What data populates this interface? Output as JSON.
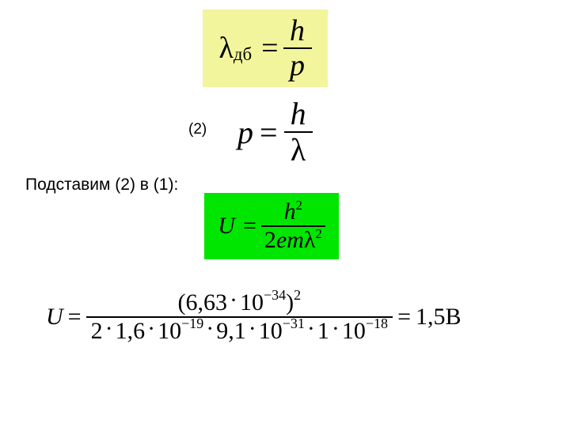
{
  "eq1": {
    "lambda": "λ",
    "sub": "дб",
    "eq": "=",
    "num": "h",
    "den": "p",
    "bg": "#f2f59b"
  },
  "label2": "(2)",
  "eq2": {
    "lhs": "p",
    "eq": "=",
    "num": "h",
    "den": "λ"
  },
  "subst": "Подставим (2) в (1):",
  "eq3": {
    "lhs": "U",
    "eq": "=",
    "num_base": "h",
    "num_exp": "2",
    "den_two": "2",
    "den_e": "e",
    "den_m": "m",
    "den_lambda": "λ",
    "den_exp": "2",
    "bg": "#00e600"
  },
  "eq4": {
    "lhs": "U",
    "eq": "=",
    "num_open": "(",
    "num_a": "6,63",
    "num_dot": "·",
    "num_b": "10",
    "num_exp_b": "−34",
    "num_close": ")",
    "num_exp_outer": "2",
    "den_a": "2",
    "den_b": "1,6",
    "den_c": "10",
    "den_exp_c": "−19",
    "den_d": "9,1",
    "den_e": "10",
    "den_exp_e": "−31",
    "den_f": "1",
    "den_g": "10",
    "den_exp_g": "−18",
    "dot": "·",
    "rhs_eq": "=",
    "rhs_val": "1,5",
    "rhs_unit": "В"
  }
}
